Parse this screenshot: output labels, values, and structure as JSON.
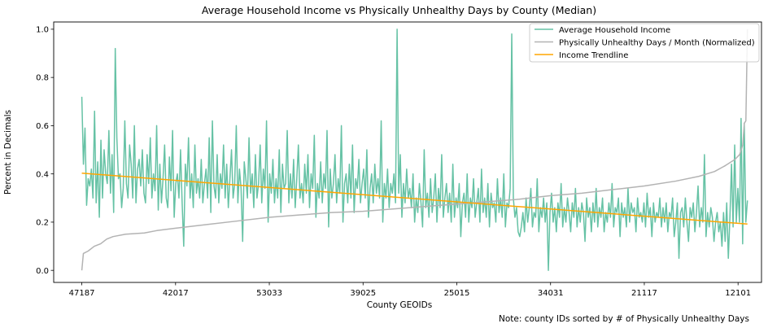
{
  "chart_data": {
    "type": "line",
    "title": "Average Household Income vs Physically Unhealthy Days by County (Median)",
    "xlabel": "County GEOIDs",
    "ylabel": "Percent in Decimals",
    "note": "Note: county IDs sorted by # of Physically Unhealthy Days",
    "xlim": [
      -18,
      435
    ],
    "ylim": [
      -0.05,
      1.03
    ],
    "x_tick_positions": [
      0,
      60,
      120,
      180,
      240,
      300,
      360,
      420
    ],
    "x_tick_labels": [
      "47187",
      "42017",
      "53033",
      "39025",
      "25015",
      "34031",
      "21117",
      "12101"
    ],
    "y_ticks": [
      0.0,
      0.2,
      0.4,
      0.6,
      0.8,
      1.0
    ],
    "y_tick_labels": [
      "0.0",
      "0.2",
      "0.4",
      "0.6",
      "0.8",
      "1.0"
    ],
    "grid": false,
    "legend_position": "top-right",
    "series": [
      {
        "name": "Average Household Income",
        "color": "#66c2a5",
        "x_range": [
          0,
          426
        ],
        "values": [
          0.72,
          0.44,
          0.59,
          0.27,
          0.38,
          0.35,
          0.42,
          0.3,
          0.66,
          0.28,
          0.45,
          0.22,
          0.54,
          0.3,
          0.5,
          0.4,
          0.36,
          0.58,
          0.32,
          0.48,
          0.24,
          0.92,
          0.55,
          0.38,
          0.4,
          0.26,
          0.34,
          0.62,
          0.36,
          0.3,
          0.52,
          0.44,
          0.3,
          0.6,
          0.28,
          0.42,
          0.46,
          0.35,
          0.5,
          0.32,
          0.28,
          0.48,
          0.36,
          0.55,
          0.3,
          0.4,
          0.33,
          0.6,
          0.25,
          0.44,
          0.28,
          0.38,
          0.52,
          0.3,
          0.26,
          0.47,
          0.33,
          0.58,
          0.22,
          0.36,
          0.4,
          0.3,
          0.5,
          0.28,
          0.1,
          0.44,
          0.35,
          0.55,
          0.3,
          0.4,
          0.26,
          0.52,
          0.32,
          0.38,
          0.3,
          0.46,
          0.28,
          0.36,
          0.42,
          0.3,
          0.55,
          0.24,
          0.62,
          0.35,
          0.3,
          0.48,
          0.28,
          0.4,
          0.34,
          0.52,
          0.3,
          0.44,
          0.26,
          0.38,
          0.5,
          0.3,
          0.36,
          0.6,
          0.28,
          0.42,
          0.34,
          0.12,
          0.45,
          0.38,
          0.3,
          0.55,
          0.32,
          0.4,
          0.26,
          0.48,
          0.3,
          0.36,
          0.52,
          0.28,
          0.42,
          0.34,
          0.62,
          0.2,
          0.4,
          0.32,
          0.46,
          0.28,
          0.38,
          0.3,
          0.5,
          0.24,
          0.44,
          0.34,
          0.36,
          0.58,
          0.28,
          0.4,
          0.3,
          0.46,
          0.26,
          0.38,
          0.52,
          0.3,
          0.36,
          0.28,
          0.44,
          0.32,
          0.48,
          0.26,
          0.4,
          0.34,
          0.56,
          0.22,
          0.36,
          0.3,
          0.45,
          0.28,
          0.4,
          0.34,
          0.58,
          0.18,
          0.42,
          0.3,
          0.36,
          0.48,
          0.28,
          0.38,
          0.32,
          0.6,
          0.2,
          0.36,
          0.4,
          0.28,
          0.44,
          0.3,
          0.52,
          0.24,
          0.38,
          0.34,
          0.46,
          0.28,
          0.36,
          0.42,
          0.3,
          0.5,
          0.22,
          0.34,
          0.4,
          0.28,
          0.44,
          0.32,
          0.38,
          0.3,
          0.62,
          0.2,
          0.36,
          0.3,
          0.42,
          0.26,
          0.36,
          0.32,
          0.4,
          0.28,
          1.0,
          0.32,
          0.48,
          0.22,
          0.36,
          0.28,
          0.42,
          0.3,
          0.34,
          0.26,
          0.4,
          0.2,
          0.3,
          0.24,
          0.36,
          0.28,
          0.18,
          0.5,
          0.26,
          0.32,
          0.22,
          0.38,
          0.24,
          0.3,
          0.4,
          0.2,
          0.34,
          0.26,
          0.48,
          0.22,
          0.3,
          0.36,
          0.24,
          0.32,
          0.2,
          0.44,
          0.22,
          0.3,
          0.26,
          0.36,
          0.14,
          0.28,
          0.32,
          0.22,
          0.4,
          0.2,
          0.3,
          0.26,
          0.38,
          0.22,
          0.28,
          0.34,
          0.2,
          0.42,
          0.24,
          0.3,
          0.22,
          0.36,
          0.18,
          0.32,
          0.26,
          0.28,
          0.2,
          0.38,
          0.24,
          0.3,
          0.22,
          0.4,
          0.18,
          0.28,
          0.26,
          0.34,
          0.98,
          0.3,
          0.22,
          0.26,
          0.16,
          0.14,
          0.18,
          0.24,
          0.16,
          0.3,
          0.2,
          0.26,
          0.34,
          0.18,
          0.24,
          0.22,
          0.38,
          0.16,
          0.26,
          0.22,
          0.3,
          0.2,
          0.28,
          0.0,
          0.24,
          0.32,
          0.2,
          0.26,
          0.16,
          0.28,
          0.22,
          0.36,
          0.18,
          0.26,
          0.2,
          0.3,
          0.24,
          0.16,
          0.28,
          0.22,
          0.34,
          0.18,
          0.26,
          0.2,
          0.28,
          0.24,
          0.12,
          0.3,
          0.22,
          0.26,
          0.16,
          0.28,
          0.2,
          0.34,
          0.18,
          0.26,
          0.22,
          0.3,
          0.16,
          0.24,
          0.2,
          0.28,
          0.22,
          0.36,
          0.18,
          0.26,
          0.24,
          0.3,
          0.14,
          0.28,
          0.22,
          0.26,
          0.18,
          0.34,
          0.2,
          0.28,
          0.24,
          0.26,
          0.16,
          0.3,
          0.22,
          0.24,
          0.2,
          0.28,
          0.18,
          0.32,
          0.22,
          0.26,
          0.14,
          0.28,
          0.2,
          0.24,
          0.22,
          0.3,
          0.18,
          0.26,
          0.2,
          0.28,
          0.16,
          0.24,
          0.22,
          0.3,
          0.14,
          0.2,
          0.28,
          0.05,
          0.24,
          0.26,
          0.18,
          0.3,
          0.2,
          0.12,
          0.26,
          0.22,
          0.28,
          0.16,
          0.24,
          0.35,
          0.18,
          0.26,
          0.2,
          0.48,
          0.14,
          0.24,
          0.18,
          0.26,
          0.22,
          0.12,
          0.2,
          0.24,
          0.16,
          0.2,
          0.1,
          0.24,
          0.12,
          0.28,
          0.05,
          0.22,
          0.44,
          0.18,
          0.52,
          0.2,
          0.34,
          0.2,
          0.63,
          0.11,
          0.61,
          0.2,
          0.29
        ]
      },
      {
        "name": "Physically Unhealthy Days / Month (Normalized)",
        "color": "#b3b3b3",
        "points": [
          [
            0,
            0.0
          ],
          [
            1,
            0.07
          ],
          [
            4,
            0.08
          ],
          [
            8,
            0.1
          ],
          [
            12,
            0.11
          ],
          [
            16,
            0.13
          ],
          [
            20,
            0.14
          ],
          [
            28,
            0.15
          ],
          [
            40,
            0.155
          ],
          [
            48,
            0.165
          ],
          [
            60,
            0.175
          ],
          [
            80,
            0.19
          ],
          [
            100,
            0.205
          ],
          [
            120,
            0.22
          ],
          [
            140,
            0.23
          ],
          [
            160,
            0.24
          ],
          [
            180,
            0.245
          ],
          [
            200,
            0.255
          ],
          [
            220,
            0.265
          ],
          [
            240,
            0.275
          ],
          [
            260,
            0.285
          ],
          [
            280,
            0.295
          ],
          [
            300,
            0.31
          ],
          [
            320,
            0.32
          ],
          [
            340,
            0.335
          ],
          [
            360,
            0.35
          ],
          [
            380,
            0.37
          ],
          [
            395,
            0.39
          ],
          [
            405,
            0.41
          ],
          [
            412,
            0.435
          ],
          [
            418,
            0.46
          ],
          [
            421,
            0.48
          ],
          [
            423,
            0.52
          ],
          [
            424,
            0.61
          ],
          [
            425,
            0.62
          ],
          [
            426,
            1.0
          ]
        ]
      },
      {
        "name": "Income Trendline",
        "color": "#ffa500",
        "points": [
          [
            0,
            0.403
          ],
          [
            426,
            0.192
          ]
        ]
      }
    ]
  }
}
